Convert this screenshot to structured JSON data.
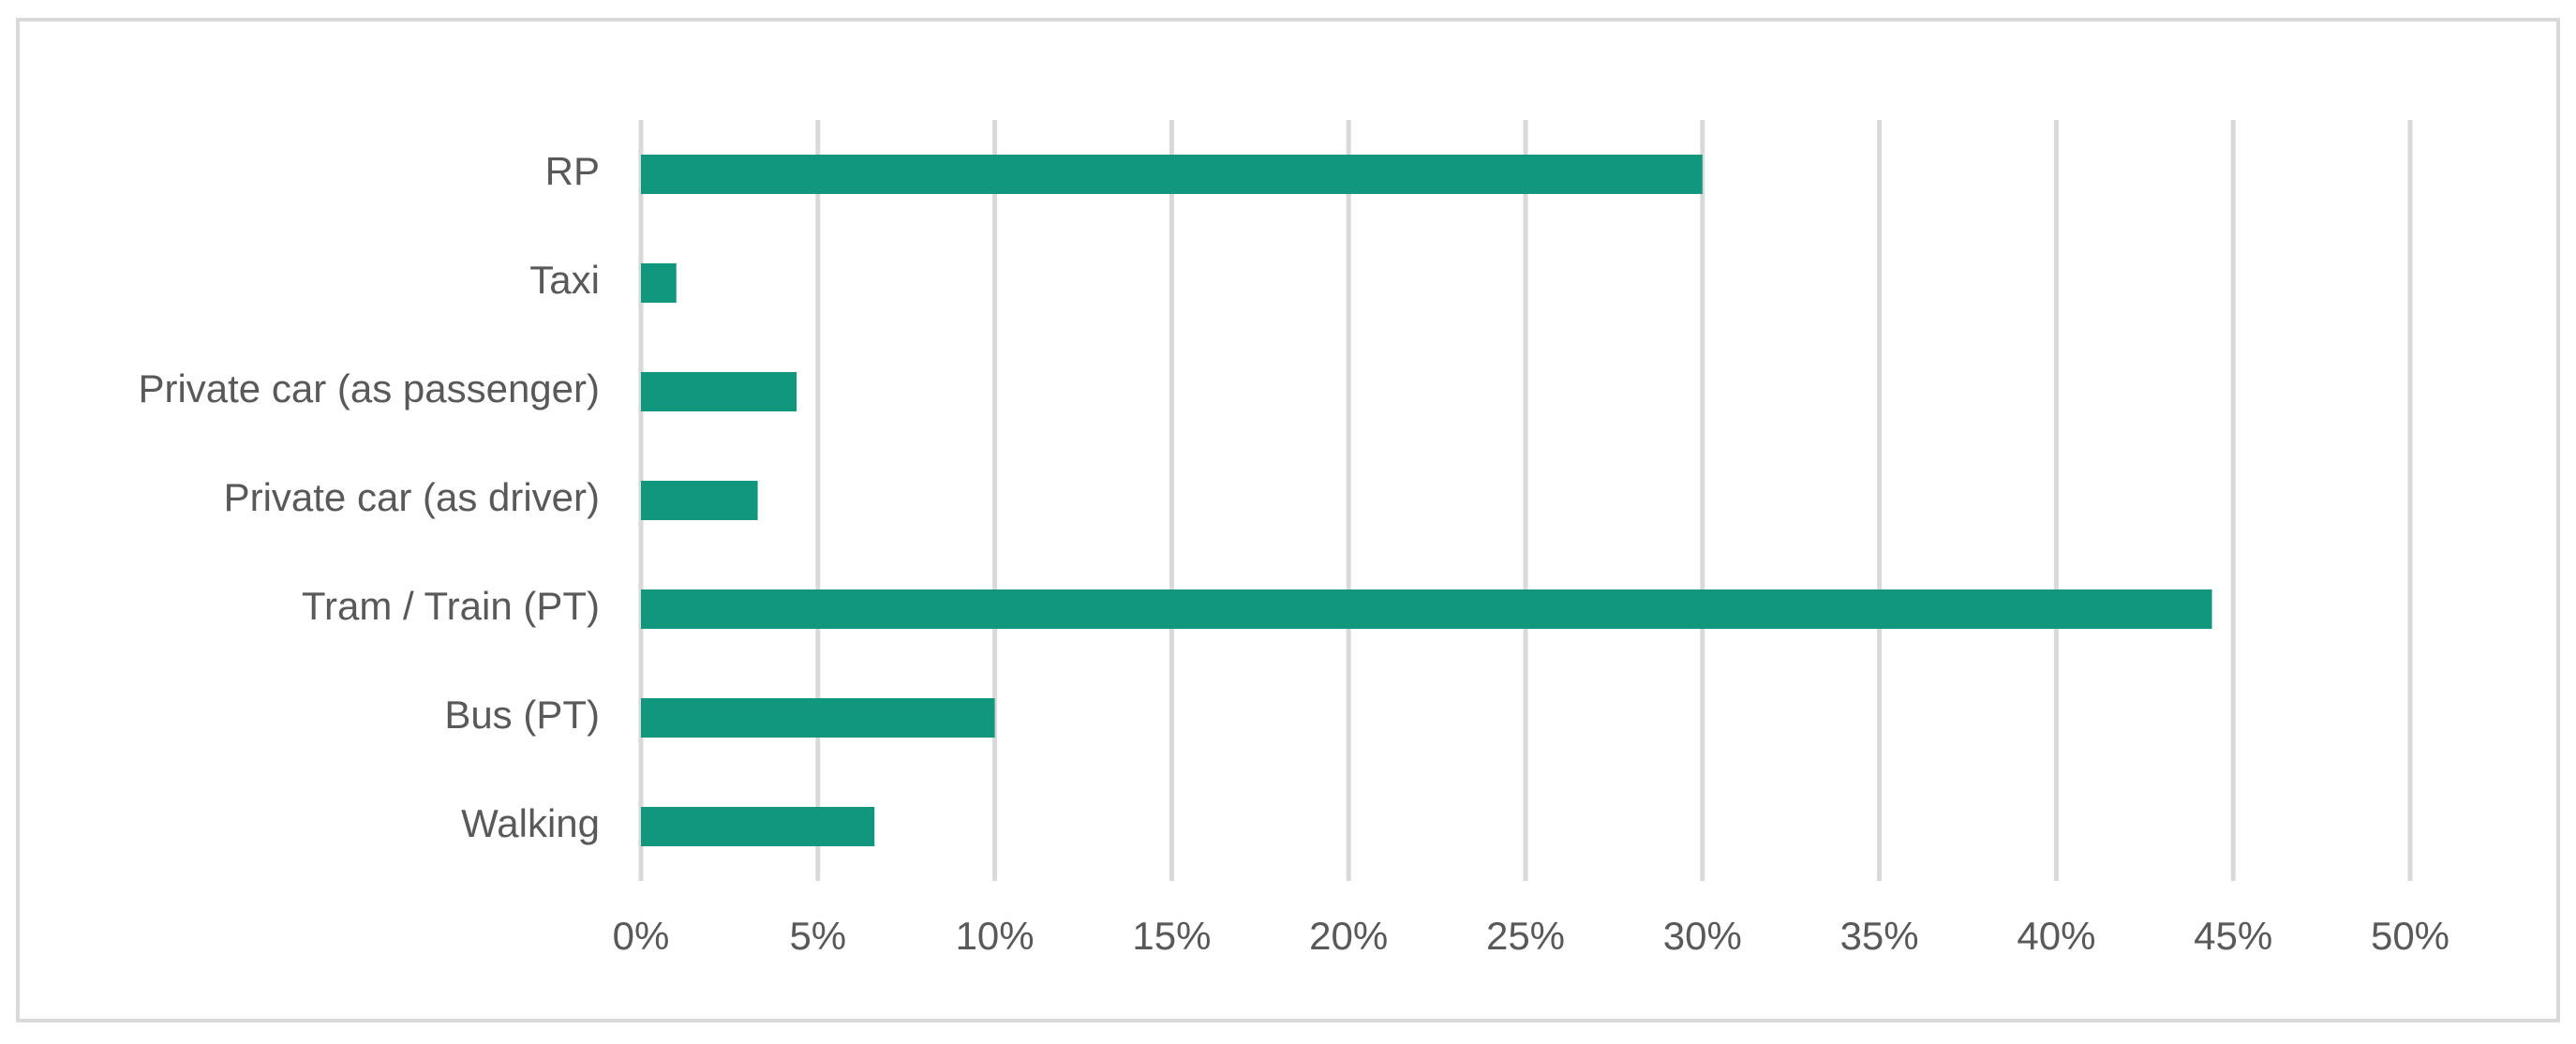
{
  "chart_data": {
    "type": "bar",
    "orientation": "horizontal",
    "categories": [
      "RP",
      "Taxi",
      "Private car (as passenger)",
      "Private car (as driver)",
      "Tram / Train (PT)",
      "Bus (PT)",
      "Walking"
    ],
    "values": [
      30.0,
      1.0,
      4.4,
      3.3,
      44.4,
      10.0,
      6.6
    ],
    "color": "#12977f",
    "xlim": [
      0,
      50
    ],
    "xticks": [
      {
        "value": 0,
        "label": "0%"
      },
      {
        "value": 5,
        "label": "5%"
      },
      {
        "value": 10,
        "label": "10%"
      },
      {
        "value": 15,
        "label": "15%"
      },
      {
        "value": 20,
        "label": "20%"
      },
      {
        "value": 25,
        "label": "25%"
      },
      {
        "value": 30,
        "label": "30%"
      },
      {
        "value": 35,
        "label": "35%"
      },
      {
        "value": 40,
        "label": "40%"
      },
      {
        "value": 45,
        "label": "45%"
      },
      {
        "value": 50,
        "label": "50%"
      }
    ],
    "grid": true
  }
}
